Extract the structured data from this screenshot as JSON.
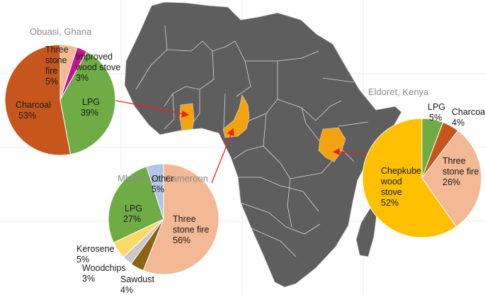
{
  "colors": {
    "map_land": "#5e5e5e",
    "map_border": "#d8d8d8",
    "highlight_country": "#f2a30f",
    "arrow": "#e8241c",
    "background_grid": "#eeeeee"
  },
  "chart_data": [
    {
      "type": "pie",
      "title": "Obuasi, Ghana",
      "slices": [
        {
          "label": "Three stone fire",
          "value": 5,
          "color": "#f3b894"
        },
        {
          "label": "Improved wood stove",
          "value": 3,
          "color": "#c4138f"
        },
        {
          "label": "LPG",
          "value": 39,
          "color": "#6fac46"
        },
        {
          "label": "Charcoal",
          "value": 53,
          "color": "#c6561b"
        }
      ]
    },
    {
      "type": "pie",
      "title": "Mbalmayo, Cameroon",
      "slices": [
        {
          "label": "Three stone fire",
          "value": 56,
          "color": "#f3b894"
        },
        {
          "label": "Sawdust",
          "value": 4,
          "color": "#8a6413"
        },
        {
          "label": "Woodchips",
          "value": 3,
          "color": "#c9c9c9"
        },
        {
          "label": "Kerosene",
          "value": 5,
          "color": "#ffd966"
        },
        {
          "label": "LPG",
          "value": 27,
          "color": "#6fac46"
        },
        {
          "label": "Other",
          "value": 5,
          "color": "#afc6e8"
        }
      ]
    },
    {
      "type": "pie",
      "title": "Eldoret, Kenya",
      "slices": [
        {
          "label": "LPG",
          "value": 5,
          "color": "#6fac46"
        },
        {
          "label": "Charcoal",
          "value": 4,
          "color": "#c6561b"
        },
        {
          "label": "Three stone fire",
          "value": 26,
          "color": "#f3b894"
        },
        {
          "label": "Chepkube wood stove",
          "value": 52,
          "color": "#ffc000"
        }
      ]
    }
  ],
  "labels": {
    "ghana": {
      "title": "Obuasi, Ghana",
      "tsf": [
        "Three",
        "stone",
        "fire",
        "5%"
      ],
      "iws": [
        "Improved",
        "wood stove",
        "3%"
      ],
      "lpg": [
        "LPG",
        "39%"
      ],
      "charcoal": [
        "Charcoal",
        "53%"
      ]
    },
    "cameroon": {
      "title": "Mbalmayo, Cameroon",
      "other": [
        "Other",
        "5%"
      ],
      "lpg": [
        "LPG",
        "27%"
      ],
      "tsf": [
        "Three",
        "stone fire",
        "56%"
      ],
      "kerosene": [
        "Kerosene",
        "5%"
      ],
      "woodchips": [
        "Woodchips",
        "3%"
      ],
      "sawdust": [
        "Sawdust",
        "4%"
      ]
    },
    "kenya": {
      "title": "Eldoret, Kenya",
      "lpg": [
        "LPG",
        "5%"
      ],
      "charcoal": [
        "Charcoal",
        "4%"
      ],
      "tsf": [
        "Three",
        "stone fire",
        "26%"
      ],
      "chepkube": [
        "Chepkube",
        "wood",
        "stove",
        "52%"
      ]
    }
  }
}
